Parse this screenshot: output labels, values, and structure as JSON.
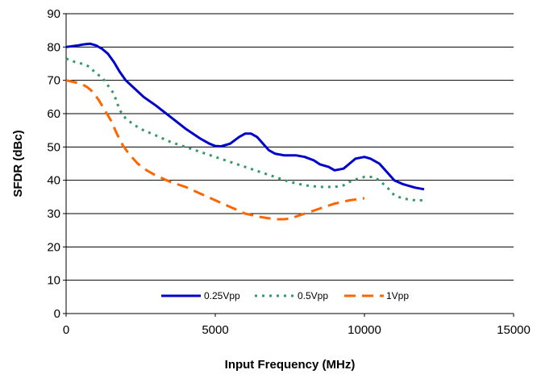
{
  "chart_data": {
    "type": "line",
    "xlabel": "Input Frequency (MHz)",
    "ylabel": "SFDR (dBc)",
    "xlim": [
      0,
      15000
    ],
    "ylim": [
      0,
      90
    ],
    "xticks": [
      0,
      5000,
      10000,
      15000
    ],
    "yticks": [
      0,
      10,
      20,
      30,
      40,
      50,
      60,
      70,
      80,
      90
    ],
    "grid": "horizontal",
    "legend_position": "bottom-center",
    "series": [
      {
        "name": "0.25Vpp",
        "color": "#0000CC",
        "style": "solid",
        "points": [
          [
            0,
            80
          ],
          [
            400,
            80.5
          ],
          [
            600,
            80.8
          ],
          [
            800,
            81
          ],
          [
            1000,
            80.5
          ],
          [
            1200,
            79.5
          ],
          [
            1400,
            78
          ],
          [
            1600,
            75.5
          ],
          [
            1800,
            72.5
          ],
          [
            2000,
            70
          ],
          [
            2300,
            67.5
          ],
          [
            2600,
            65
          ],
          [
            3000,
            62.5
          ],
          [
            3500,
            59
          ],
          [
            4000,
            55.5
          ],
          [
            4500,
            52.5
          ],
          [
            4800,
            51
          ],
          [
            5000,
            50.3
          ],
          [
            5200,
            50.2
          ],
          [
            5500,
            51
          ],
          [
            5800,
            53
          ],
          [
            6000,
            54
          ],
          [
            6200,
            54
          ],
          [
            6400,
            53
          ],
          [
            6600,
            51
          ],
          [
            6800,
            49
          ],
          [
            7000,
            48
          ],
          [
            7300,
            47.5
          ],
          [
            7700,
            47.5
          ],
          [
            8000,
            47
          ],
          [
            8300,
            46
          ],
          [
            8500,
            44.8
          ],
          [
            8800,
            44
          ],
          [
            9000,
            43
          ],
          [
            9300,
            43.5
          ],
          [
            9500,
            45
          ],
          [
            9700,
            46.5
          ],
          [
            10000,
            47
          ],
          [
            10200,
            46.5
          ],
          [
            10500,
            45
          ],
          [
            10800,
            42
          ],
          [
            11000,
            40
          ],
          [
            11300,
            38.8
          ],
          [
            11700,
            37.8
          ],
          [
            12000,
            37.3
          ]
        ]
      },
      {
        "name": "0.5Vpp",
        "color": "#339966",
        "style": "dotted",
        "points": [
          [
            0,
            76.5
          ],
          [
            300,
            75.5
          ],
          [
            600,
            74.8
          ],
          [
            800,
            74
          ],
          [
            1000,
            72
          ],
          [
            1200,
            71
          ],
          [
            1400,
            68.5
          ],
          [
            1600,
            66
          ],
          [
            1800,
            61
          ],
          [
            2000,
            58.5
          ],
          [
            2300,
            56.5
          ],
          [
            2600,
            55
          ],
          [
            3000,
            53.5
          ],
          [
            3500,
            51.5
          ],
          [
            4000,
            50
          ],
          [
            4500,
            48.5
          ],
          [
            5000,
            47
          ],
          [
            5500,
            45.5
          ],
          [
            6000,
            44
          ],
          [
            6500,
            42.5
          ],
          [
            7000,
            41
          ],
          [
            7500,
            39.5
          ],
          [
            8000,
            38.5
          ],
          [
            8500,
            38
          ],
          [
            9000,
            38
          ],
          [
            9300,
            38.5
          ],
          [
            9600,
            40
          ],
          [
            10000,
            41
          ],
          [
            10300,
            41
          ],
          [
            10500,
            40
          ],
          [
            10800,
            37.5
          ],
          [
            11000,
            35.5
          ],
          [
            11300,
            34.5
          ],
          [
            11700,
            34
          ],
          [
            12000,
            34
          ]
        ]
      },
      {
        "name": "1Vpp",
        "color": "#FF6600",
        "style": "dashed",
        "points": [
          [
            0,
            70
          ],
          [
            500,
            69
          ],
          [
            700,
            68
          ],
          [
            900,
            66.5
          ],
          [
            1100,
            64
          ],
          [
            1300,
            61
          ],
          [
            1500,
            58
          ],
          [
            1700,
            54
          ],
          [
            1900,
            50.5
          ],
          [
            2100,
            48
          ],
          [
            2400,
            45
          ],
          [
            2700,
            43
          ],
          [
            3000,
            41.5
          ],
          [
            3500,
            39.5
          ],
          [
            4000,
            38
          ],
          [
            4500,
            36
          ],
          [
            5000,
            34
          ],
          [
            5500,
            32
          ],
          [
            6000,
            30
          ],
          [
            6500,
            29
          ],
          [
            7000,
            28.3
          ],
          [
            7300,
            28.3
          ],
          [
            7500,
            28.5
          ],
          [
            8000,
            30
          ],
          [
            8500,
            31.5
          ],
          [
            9000,
            33
          ],
          [
            9500,
            34
          ],
          [
            10000,
            34.6
          ]
        ]
      }
    ]
  }
}
